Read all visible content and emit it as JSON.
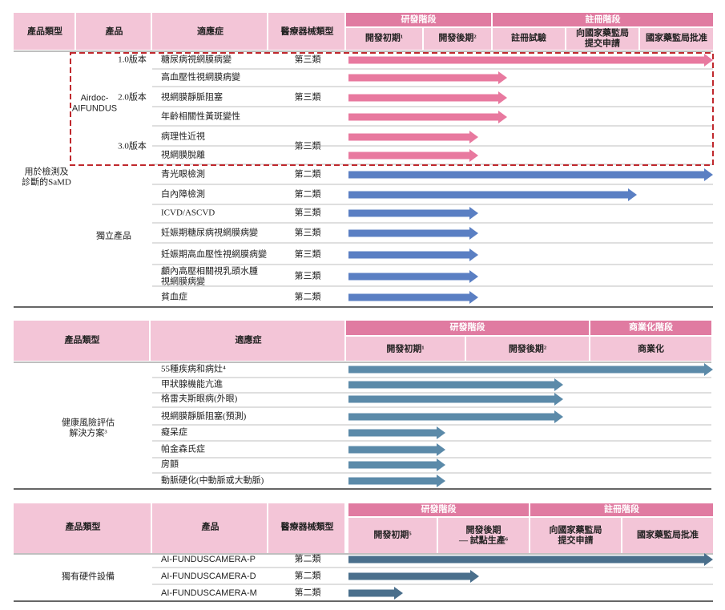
{
  "pipeline_1": {
    "columns": [
      "產品類型",
      "產品",
      "適應症",
      "醫療器械類型"
    ],
    "phase_groups": [
      "研發階段",
      "註冊階段"
    ],
    "phases": [
      "開發初期¹",
      "開發後期²",
      "註冊試驗",
      "向國家藥監局\n提交申請",
      "國家藥監局批准"
    ],
    "category": "用於檢測及\n診斷的SaMD",
    "product": "Airdoc-\nAIFUNDUS",
    "versions": [
      {
        "label": "1.0版本",
        "class": "第三類",
        "indications": [
          "糖尿病視網膜病變"
        ]
      },
      {
        "label": "2.0版本",
        "class": "第三類",
        "indications": [
          "高血壓性視網膜病變",
          "視網膜靜脈阻塞",
          "年齡相關性黃斑變性"
        ]
      },
      {
        "label": "3.0版本",
        "class": "第三類",
        "indications": [
          "病理性近視",
          "視網膜脫離"
        ]
      }
    ],
    "standalone": {
      "label": "獨立產品",
      "items": [
        {
          "indication": "青光眼檢測",
          "class": "第二類"
        },
        {
          "indication": "白內障檢測",
          "class": "第二類"
        },
        {
          "indication": "ICVD/ASCVD",
          "class": "第三類"
        },
        {
          "indication": "妊娠期糖尿病視網膜病變",
          "class": "第三類"
        },
        {
          "indication": "妊娠期高血壓性視網膜病變",
          "class": "第三類"
        },
        {
          "indication": "顱內高壓相關視乳頭水腫\n視網膜病變",
          "class": "第三類"
        },
        {
          "indication": "貧血症",
          "class": "第二類"
        }
      ]
    }
  },
  "pipeline_2": {
    "columns": [
      "產品類型",
      "適應症"
    ],
    "phase_groups": [
      "研發階段",
      "商業化階段"
    ],
    "phases": [
      "開發初期¹",
      "開發後期²",
      "商業化"
    ],
    "category": "健康風險評估\n解決方案³",
    "indications": [
      "55種疾病和病灶⁴",
      "甲狀腺機能亢進",
      "格雷夫斯眼病(外眼)",
      "視網膜靜脈阻塞(預測)",
      "癡呆症",
      "帕金森氏症",
      "房顫",
      "動脈硬化(中動脈或大動脈)"
    ]
  },
  "pipeline_3": {
    "columns": [
      "產品類型",
      "產品",
      "醫療器械類型"
    ],
    "phase_groups": [
      "研發階段",
      "註冊階段"
    ],
    "phases": [
      "開發初期⁵",
      "開發後期\n— 試點生產⁶",
      "向國家藥監局\n提交申請",
      "國家藥監局批准"
    ],
    "category": "獨有硬件設備",
    "items": [
      {
        "product": "AI-FUNDUSCAMERA-P",
        "class": "第二類"
      },
      {
        "product": "AI-FUNDUSCAMERA-D",
        "class": "第二類"
      },
      {
        "product": "AI-FUNDUSCAMERA-M",
        "class": "第二類"
      }
    ]
  }
}
